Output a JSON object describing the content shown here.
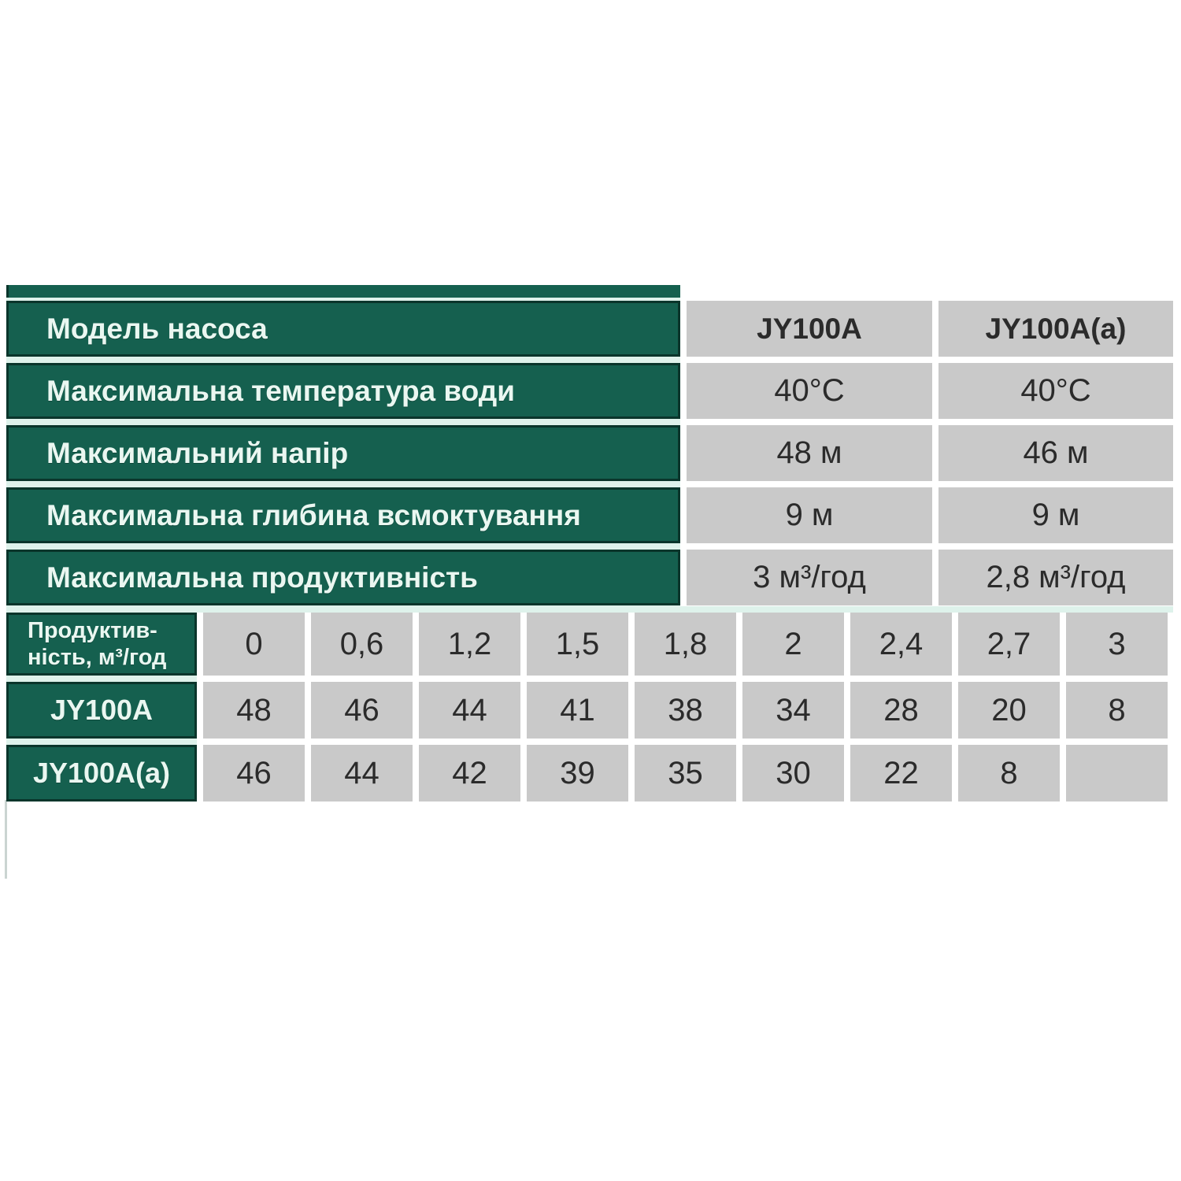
{
  "colors": {
    "green_cell": "#15604F",
    "green_border": "#0A352B",
    "mint_gap": "#DEF2EB",
    "gray_cell": "#C9C9C9",
    "text_on_green": "#EAF7F1",
    "text_on_gray": "#2B2B2B",
    "page_background": "#FFFFFF"
  },
  "chart_data": [
    {
      "type": "table",
      "name": "pump-specifications",
      "rows": [
        {
          "label": "Модель насоса",
          "values": [
            "JY100A",
            "JY100A(a)"
          ],
          "header_values": true
        },
        {
          "label": "Максимальна температура води",
          "values": [
            "40°C",
            "40°C"
          ]
        },
        {
          "label": "Максимальний напір",
          "values": [
            "48 м",
            "46 м"
          ]
        },
        {
          "label": "Максимальна глибина всмоктування",
          "values": [
            "9 м",
            "9 м"
          ]
        },
        {
          "label": "Максимальна продуктивність",
          "values": [
            "3 м³/год",
            "2,8 м³/год"
          ]
        }
      ]
    },
    {
      "type": "table",
      "name": "head-vs-flow-performance",
      "corner_label_lines": [
        "Продуктив-",
        "ність, м³/год"
      ],
      "flow_headers": [
        "0",
        "0,6",
        "1,2",
        "1,5",
        "1,8",
        "2",
        "2,4",
        "2,7",
        "3"
      ],
      "series": [
        {
          "label": "JY100A",
          "values": [
            "48",
            "46",
            "44",
            "41",
            "38",
            "34",
            "28",
            "20",
            "8"
          ]
        },
        {
          "label": "JY100A(a)",
          "values": [
            "46",
            "44",
            "42",
            "39",
            "35",
            "30",
            "22",
            "8",
            ""
          ]
        }
      ]
    }
  ]
}
